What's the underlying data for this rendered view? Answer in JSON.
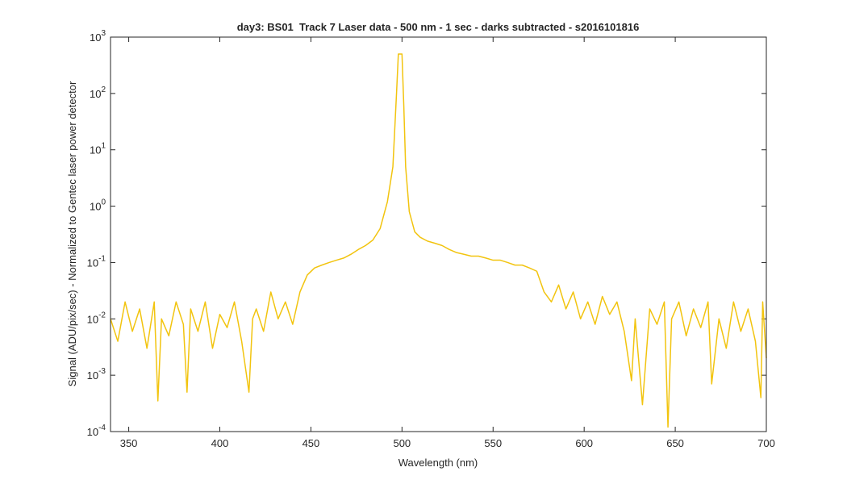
{
  "chart_data": {
    "type": "line",
    "title": "day3: BS01  Track 7 Laser data - 500 nm - 1 sec - darks subtracted - s2016101816",
    "x_label": "Wavelength (nm)",
    "y_label": "Signal (ADU/pix/sec) - Normalized to Gentec laser power detector",
    "log_y": true,
    "color": "#f2c40f",
    "xlim": [
      340,
      700
    ],
    "xticks": [
      350,
      400,
      450,
      500,
      550,
      600,
      650,
      700
    ],
    "ylim": [
      0.0001,
      1000
    ],
    "yticks": [
      {
        "value": 0.0001,
        "label": "10",
        "exp": "-4"
      },
      {
        "value": 0.001,
        "label": "10",
        "exp": "-3"
      },
      {
        "value": 0.01,
        "label": "10",
        "exp": "-2"
      },
      {
        "value": 0.1,
        "label": "10",
        "exp": "-1"
      },
      {
        "value": 1,
        "label": "10",
        "exp": "0"
      },
      {
        "value": 10,
        "label": "10",
        "exp": "1"
      },
      {
        "value": 100,
        "label": "10",
        "exp": "2"
      },
      {
        "value": 1000,
        "label": "10",
        "exp": "3"
      }
    ],
    "x": [
      340,
      344,
      348,
      352,
      356,
      360,
      364,
      366,
      368,
      372,
      376,
      380,
      382,
      384,
      388,
      392,
      396,
      400,
      404,
      408,
      412,
      416,
      418,
      420,
      424,
      428,
      432,
      436,
      440,
      444,
      448,
      452,
      456,
      460,
      464,
      468,
      472,
      476,
      480,
      484,
      488,
      492,
      495,
      497,
      498,
      499,
      500,
      501,
      502,
      504,
      507,
      510,
      514,
      518,
      522,
      526,
      530,
      534,
      538,
      542,
      546,
      550,
      554,
      558,
      562,
      566,
      570,
      574,
      578,
      582,
      586,
      590,
      594,
      598,
      602,
      606,
      610,
      614,
      618,
      622,
      626,
      628,
      632,
      636,
      640,
      644,
      646,
      648,
      652,
      656,
      660,
      664,
      668,
      670,
      674,
      678,
      682,
      686,
      690,
      694,
      697,
      698,
      700
    ],
    "values": [
      0.01,
      0.004,
      0.02,
      0.006,
      0.015,
      0.003,
      0.02,
      0.00035,
      0.01,
      0.005,
      0.02,
      0.008,
      0.0005,
      0.015,
      0.006,
      0.02,
      0.003,
      0.012,
      0.007,
      0.02,
      0.004,
      0.0005,
      0.01,
      0.015,
      0.006,
      0.03,
      0.01,
      0.02,
      0.008,
      0.03,
      0.06,
      0.08,
      0.09,
      0.1,
      0.11,
      0.12,
      0.14,
      0.17,
      0.2,
      0.25,
      0.4,
      1.2,
      5,
      100,
      500,
      500,
      500,
      60,
      5,
      0.8,
      0.35,
      0.28,
      0.24,
      0.22,
      0.2,
      0.17,
      0.15,
      0.14,
      0.13,
      0.13,
      0.12,
      0.11,
      0.11,
      0.1,
      0.09,
      0.09,
      0.08,
      0.07,
      0.03,
      0.02,
      0.04,
      0.015,
      0.03,
      0.01,
      0.02,
      0.008,
      0.025,
      0.012,
      0.02,
      0.006,
      0.0008,
      0.01,
      0.0003,
      0.015,
      0.008,
      0.02,
      0.00012,
      0.01,
      0.02,
      0.005,
      0.015,
      0.007,
      0.02,
      0.0007,
      0.01,
      0.003,
      0.02,
      0.006,
      0.015,
      0.004,
      0.0004,
      0.02,
      0.002
    ]
  }
}
